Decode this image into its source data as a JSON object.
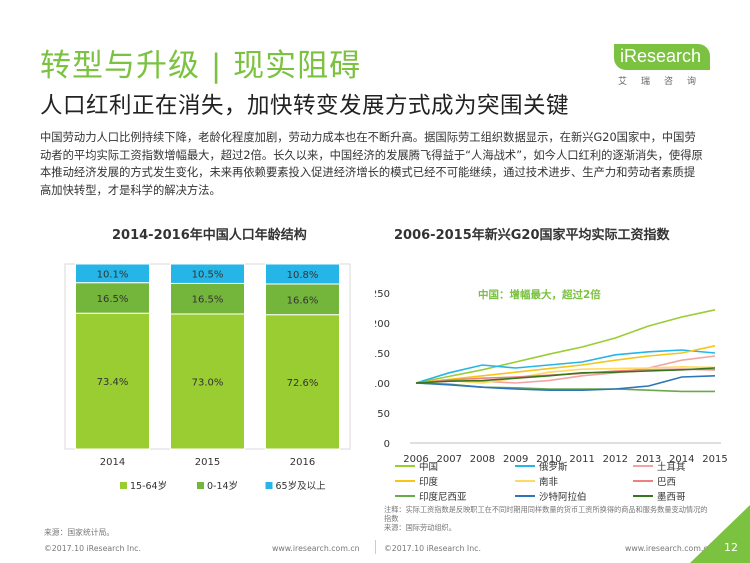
{
  "header": {
    "title": "转型与升级 | 现实阻碍",
    "subtitle": "人口红利正在消失，加快转变发展方式成为突围关键",
    "logo_main": "iResearch",
    "logo_sub": "艾瑞咨询",
    "brand_color": "#7cc241"
  },
  "paragraph": "中国劳动力人口比例持续下降，老龄化程度加剧，劳动力成本也在不断升高。据国际劳工组织数据显示，在新兴G20国家中，中国劳动者的平均实际工资指数增幅最大，超过2倍。长久以来，中国经济的发展腾飞得益于“人海战术”，如今人口红利的逐渐消失，使得原本推动经济发展的方式发生变化，未来再依赖要素投入促进经济增长的模式已经不可能继续，通过技术进步、生产力和劳动者素质提高加快转型，才是科学的解决方法。",
  "chart_data": [
    {
      "type": "bar",
      "stacked": true,
      "title": "2014-2016年中国人口年龄结构",
      "categories": [
        "2014",
        "2015",
        "2016"
      ],
      "series": [
        {
          "name": "15-64岁",
          "values": [
            73.4,
            73.0,
            72.6
          ],
          "labels": [
            "73.4%",
            "73.0%",
            "72.6%"
          ],
          "color": "#9acd32"
        },
        {
          "name": "0-14岁",
          "values": [
            16.5,
            16.5,
            16.6
          ],
          "labels": [
            "16.5%",
            "16.5%",
            "16.6%"
          ],
          "color": "#74b63c"
        },
        {
          "name": "65岁及以上",
          "values": [
            10.1,
            10.5,
            10.8
          ],
          "labels": [
            "10.1%",
            "10.5%",
            "10.8%"
          ],
          "color": "#25b6e7"
        }
      ],
      "ylim": [
        0,
        100
      ],
      "legend": "bottom"
    },
    {
      "type": "line",
      "title": "2006-2015年新兴G20国家平均实际工资指数",
      "x": [
        "2006",
        "2007",
        "2008",
        "2009",
        "2010",
        "2011",
        "2012",
        "2013",
        "2014",
        "2015"
      ],
      "ylim": [
        0,
        250
      ],
      "yticks": [
        "0",
        "50",
        "100",
        "150",
        "200",
        "250"
      ],
      "annotation": "中国：增幅最大，超过2倍",
      "annotation_color": "#7cc241",
      "legend": "bottom",
      "series": [
        {
          "name": "中国",
          "color": "#9acd32",
          "values": [
            100,
            111,
            122,
            135,
            148,
            160,
            175,
            195,
            210,
            222
          ]
        },
        {
          "name": "俄罗斯",
          "color": "#25b6e7",
          "values": [
            100,
            117,
            130,
            125,
            130,
            135,
            147,
            152,
            155,
            150
          ]
        },
        {
          "name": "土耳其",
          "color": "#f4a3a3",
          "values": [
            100,
            103,
            103,
            100,
            104,
            112,
            117,
            125,
            138,
            145
          ]
        },
        {
          "name": "印度",
          "color": "#f5c518",
          "values": [
            100,
            106,
            112,
            118,
            124,
            130,
            138,
            145,
            150,
            162
          ]
        },
        {
          "name": "南非",
          "color": "#ffd966",
          "values": [
            100,
            104,
            100,
            108,
            118,
            123,
            124,
            125,
            127,
            126
          ]
        },
        {
          "name": "巴西",
          "color": "#f08080",
          "values": [
            100,
            105,
            108,
            110,
            113,
            116,
            120,
            122,
            123,
            122
          ]
        },
        {
          "name": "印度尼西亚",
          "color": "#6aa84f",
          "values": [
            100,
            98,
            93,
            92,
            90,
            90,
            90,
            88,
            86,
            86
          ]
        },
        {
          "name": "沙特阿拉伯",
          "color": "#2e75b6",
          "values": [
            100,
            97,
            93,
            90,
            88,
            88,
            90,
            95,
            110,
            112
          ]
        },
        {
          "name": "墨西哥",
          "color": "#38761d",
          "values": [
            100,
            103,
            104,
            108,
            112,
            117,
            118,
            120,
            122,
            125
          ]
        }
      ]
    }
  ],
  "footer": {
    "source_left": "来源：国家统计局。",
    "note_right": "注释：实际工资指数是反映职工在不同时期用同样数量的货币工资所换得的商品和服务数量变动情况的指数",
    "source_right": "来源：国际劳动组织。",
    "copyright": "©2017.10 iResearch Inc.",
    "website": "www.iresearch.com.cn",
    "page_number": "12"
  }
}
